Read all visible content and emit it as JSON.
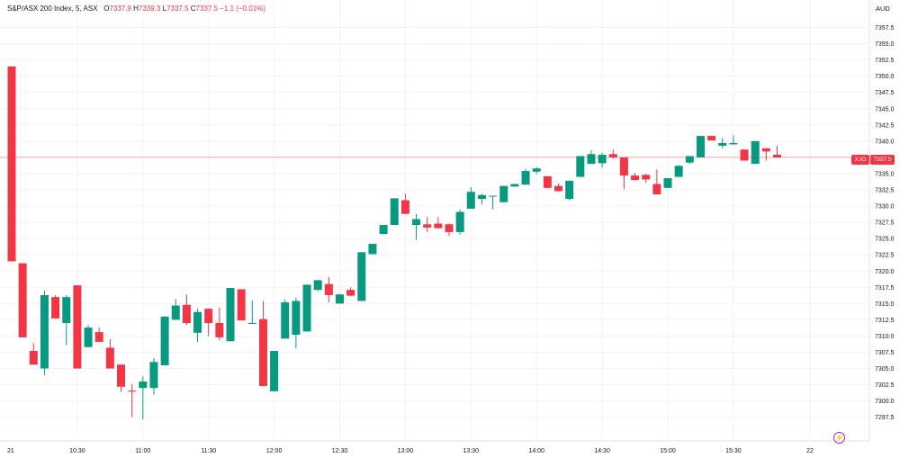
{
  "header": {
    "title": "S&P/ASX 200 Index, 5, ASX",
    "o_label": "O",
    "o_value": "7337.9",
    "h_label": "H",
    "h_value": "7339.3",
    "l_label": "L",
    "l_value": "7337.5",
    "c_label": "C",
    "c_value": "7337.5",
    "change": "−1.1 (−0.01%)"
  },
  "currency": "AUD",
  "ticker_tag": "XJO",
  "last_price_tag": "7337.5",
  "colors": {
    "up": "#089981",
    "down": "#f23645",
    "grid": "#f0f3fa",
    "text": "#131722",
    "event_icon": "#9c27b0"
  },
  "event_icon": "lightning-icon",
  "chart_data": {
    "type": "candlestick",
    "y_ticks": [
      "7357.5",
      "7355.0",
      "7352.5",
      "7350.0",
      "7347.5",
      "7345.0",
      "7342.5",
      "7340.0",
      "7337.5",
      "7335.0",
      "7332.5",
      "7330.0",
      "7327.5",
      "7325.0",
      "7322.5",
      "7320.0",
      "7317.5",
      "7315.0",
      "7312.5",
      "7310.0",
      "7307.5",
      "7305.0",
      "7302.5",
      "7300.0",
      "7297.5"
    ],
    "ylim": [
      7295.5,
      7359.5
    ],
    "x_ticks": [
      {
        "label": "21",
        "time": "10:00"
      },
      {
        "label": "10:30",
        "time": "10:30"
      },
      {
        "label": "11:00",
        "time": "11:00"
      },
      {
        "label": "11:30",
        "time": "11:30"
      },
      {
        "label": "12:00",
        "time": "12:00"
      },
      {
        "label": "12:30",
        "time": "12:30"
      },
      {
        "label": "13:00",
        "time": "13:00"
      },
      {
        "label": "13:30",
        "time": "13:30"
      },
      {
        "label": "14:00",
        "time": "14:00"
      },
      {
        "label": "14:30",
        "time": "14:30"
      },
      {
        "label": "15:00",
        "time": "15:00"
      },
      {
        "label": "15:30",
        "time": "15:30"
      },
      {
        "label": "22",
        "time": "16:05"
      }
    ],
    "last_price": 7337.5,
    "candles": [
      {
        "t": "10:00",
        "o": 7351.5,
        "h": 7351.5,
        "l": 7321.5,
        "c": 7321.5
      },
      {
        "t": "10:05",
        "o": 7321.2,
        "h": 7321.2,
        "l": 7309.8,
        "c": 7309.8
      },
      {
        "t": "10:10",
        "o": 7307.7,
        "h": 7308.9,
        "l": 7305.6,
        "c": 7305.6
      },
      {
        "t": "10:15",
        "o": 7305.0,
        "h": 7317.0,
        "l": 7304.0,
        "c": 7316.3
      },
      {
        "t": "10:20",
        "o": 7316.0,
        "h": 7316.3,
        "l": 7312.7,
        "c": 7312.7
      },
      {
        "t": "10:25",
        "o": 7312.0,
        "h": 7316.3,
        "l": 7308.6,
        "c": 7316.0
      },
      {
        "t": "10:30",
        "o": 7317.8,
        "h": 7317.8,
        "l": 7305.0,
        "c": 7305.0
      },
      {
        "t": "10:35",
        "o": 7308.3,
        "h": 7311.7,
        "l": 7308.3,
        "c": 7311.3
      },
      {
        "t": "10:40",
        "o": 7310.6,
        "h": 7311.3,
        "l": 7309.1,
        "c": 7309.1
      },
      {
        "t": "10:45",
        "o": 7308.2,
        "h": 7309.5,
        "l": 7305.0,
        "c": 7305.0
      },
      {
        "t": "10:50",
        "o": 7305.6,
        "h": 7305.6,
        "l": 7301.4,
        "c": 7302.2
      },
      {
        "t": "10:55",
        "o": 7301.6,
        "h": 7302.6,
        "l": 7297.5,
        "c": 7301.5
      },
      {
        "t": "11:00",
        "o": 7302.0,
        "h": 7303.8,
        "l": 7297.2,
        "c": 7303.0
      },
      {
        "t": "11:05",
        "o": 7302.0,
        "h": 7306.6,
        "l": 7301.0,
        "c": 7306.0
      },
      {
        "t": "11:10",
        "o": 7305.5,
        "h": 7313.0,
        "l": 7305.5,
        "c": 7313.0
      },
      {
        "t": "11:15",
        "o": 7312.5,
        "h": 7315.7,
        "l": 7312.5,
        "c": 7314.7
      },
      {
        "t": "11:20",
        "o": 7314.8,
        "h": 7316.4,
        "l": 7311.7,
        "c": 7312.0
      },
      {
        "t": "11:25",
        "o": 7310.5,
        "h": 7314.2,
        "l": 7309.1,
        "c": 7313.7
      },
      {
        "t": "11:30",
        "o": 7314.2,
        "h": 7314.2,
        "l": 7310.0,
        "c": 7312.0
      },
      {
        "t": "11:35",
        "o": 7312.0,
        "h": 7314.4,
        "l": 7309.3,
        "c": 7309.8
      },
      {
        "t": "11:40",
        "o": 7309.2,
        "h": 7317.4,
        "l": 7309.2,
        "c": 7317.4
      },
      {
        "t": "11:45",
        "o": 7317.2,
        "h": 7317.2,
        "l": 7312.4,
        "c": 7312.4
      },
      {
        "t": "11:50",
        "o": 7312.0,
        "h": 7315.5,
        "l": 7312.0,
        "c": 7312.0
      },
      {
        "t": "11:55",
        "o": 7312.6,
        "h": 7315.4,
        "l": 7302.3,
        "c": 7302.3
      },
      {
        "t": "12:00",
        "o": 7301.5,
        "h": 7307.7,
        "l": 7301.5,
        "c": 7307.7
      },
      {
        "t": "12:05",
        "o": 7309.6,
        "h": 7315.6,
        "l": 7309.6,
        "c": 7315.2
      },
      {
        "t": "12:10",
        "o": 7310.2,
        "h": 7315.9,
        "l": 7308.1,
        "c": 7315.4
      },
      {
        "t": "12:15",
        "o": 7310.7,
        "h": 7317.9,
        "l": 7310.7,
        "c": 7317.9
      },
      {
        "t": "12:20",
        "o": 7317.1,
        "h": 7318.6,
        "l": 7316.9,
        "c": 7318.6
      },
      {
        "t": "12:25",
        "o": 7318.0,
        "h": 7319.1,
        "l": 7315.2,
        "c": 7316.3
      },
      {
        "t": "12:30",
        "o": 7315.0,
        "h": 7316.5,
        "l": 7315.0,
        "c": 7316.4
      },
      {
        "t": "12:35",
        "o": 7317.1,
        "h": 7317.5,
        "l": 7316.2,
        "c": 7316.2
      },
      {
        "t": "12:40",
        "o": 7315.4,
        "h": 7322.9,
        "l": 7315.4,
        "c": 7322.9
      },
      {
        "t": "12:45",
        "o": 7322.6,
        "h": 7324.2,
        "l": 7322.6,
        "c": 7324.2
      },
      {
        "t": "12:50",
        "o": 7325.7,
        "h": 7327.1,
        "l": 7325.7,
        "c": 7327.1
      },
      {
        "t": "12:55",
        "o": 7327.1,
        "h": 7331.2,
        "l": 7327.1,
        "c": 7331.2
      },
      {
        "t": "13:00",
        "o": 7330.9,
        "h": 7331.9,
        "l": 7328.8,
        "c": 7328.8
      },
      {
        "t": "13:05",
        "o": 7327.1,
        "h": 7328.8,
        "l": 7324.8,
        "c": 7328.0
      },
      {
        "t": "13:10",
        "o": 7327.2,
        "h": 7328.3,
        "l": 7326.0,
        "c": 7326.7
      },
      {
        "t": "13:15",
        "o": 7327.3,
        "h": 7328.3,
        "l": 7326.6,
        "c": 7326.6
      },
      {
        "t": "13:20",
        "o": 7327.2,
        "h": 7327.3,
        "l": 7325.4,
        "c": 7326.0
      },
      {
        "t": "13:25",
        "o": 7326.0,
        "h": 7329.5,
        "l": 7325.6,
        "c": 7329.1
      },
      {
        "t": "13:30",
        "o": 7329.6,
        "h": 7332.9,
        "l": 7329.6,
        "c": 7332.2
      },
      {
        "t": "13:35",
        "o": 7331.1,
        "h": 7331.9,
        "l": 7330.3,
        "c": 7331.7
      },
      {
        "t": "13:40",
        "o": 7331.6,
        "h": 7331.6,
        "l": 7329.5,
        "c": 7331.6
      },
      {
        "t": "13:45",
        "o": 7330.6,
        "h": 7333.1,
        "l": 7330.6,
        "c": 7333.1
      },
      {
        "t": "13:50",
        "o": 7333.0,
        "h": 7333.4,
        "l": 7333.0,
        "c": 7333.4
      },
      {
        "t": "13:55",
        "o": 7333.3,
        "h": 7335.7,
        "l": 7333.3,
        "c": 7335.4
      },
      {
        "t": "14:00",
        "o": 7335.3,
        "h": 7336.0,
        "l": 7334.9,
        "c": 7335.8
      },
      {
        "t": "14:05",
        "o": 7334.6,
        "h": 7334.6,
        "l": 7332.8,
        "c": 7332.8
      },
      {
        "t": "14:10",
        "o": 7333.1,
        "h": 7333.5,
        "l": 7332.2,
        "c": 7332.3
      },
      {
        "t": "14:15",
        "o": 7331.1,
        "h": 7333.9,
        "l": 7330.9,
        "c": 7333.9
      },
      {
        "t": "14:20",
        "o": 7334.5,
        "h": 7337.7,
        "l": 7334.5,
        "c": 7337.7
      },
      {
        "t": "14:25",
        "o": 7336.5,
        "h": 7338.6,
        "l": 7336.5,
        "c": 7338.0
      },
      {
        "t": "14:30",
        "o": 7336.6,
        "h": 7338.2,
        "l": 7335.9,
        "c": 7337.9
      },
      {
        "t": "14:35",
        "o": 7338.0,
        "h": 7338.7,
        "l": 7337.3,
        "c": 7337.5
      },
      {
        "t": "14:40",
        "o": 7337.5,
        "h": 7337.5,
        "l": 7332.6,
        "c": 7334.7
      },
      {
        "t": "14:45",
        "o": 7334.7,
        "h": 7335.1,
        "l": 7334.0,
        "c": 7334.0
      },
      {
        "t": "14:50",
        "o": 7334.8,
        "h": 7335.0,
        "l": 7333.6,
        "c": 7334.1
      },
      {
        "t": "14:55",
        "o": 7333.4,
        "h": 7335.6,
        "l": 7332.0,
        "c": 7331.8
      },
      {
        "t": "15:00",
        "o": 7332.8,
        "h": 7334.3,
        "l": 7332.8,
        "c": 7334.3
      },
      {
        "t": "15:05",
        "o": 7334.5,
        "h": 7336.3,
        "l": 7334.5,
        "c": 7336.2
      },
      {
        "t": "15:10",
        "o": 7336.7,
        "h": 7337.7,
        "l": 7336.5,
        "c": 7337.7
      },
      {
        "t": "15:15",
        "o": 7337.5,
        "h": 7340.8,
        "l": 7337.5,
        "c": 7340.8
      },
      {
        "t": "15:20",
        "o": 7340.8,
        "h": 7340.8,
        "l": 7340.1,
        "c": 7340.1
      },
      {
        "t": "15:25",
        "o": 7339.3,
        "h": 7340.5,
        "l": 7338.9,
        "c": 7339.7
      },
      {
        "t": "15:30",
        "o": 7339.5,
        "h": 7340.9,
        "l": 7339.5,
        "c": 7339.7
      },
      {
        "t": "15:35",
        "o": 7338.7,
        "h": 7338.7,
        "l": 7337.0,
        "c": 7337.0
      },
      {
        "t": "15:40",
        "o": 7336.5,
        "h": 7340.0,
        "l": 7336.5,
        "c": 7340.0
      },
      {
        "t": "15:45",
        "o": 7338.9,
        "h": 7338.9,
        "l": 7337.0,
        "c": 7338.4
      },
      {
        "t": "15:50",
        "o": 7337.9,
        "h": 7339.3,
        "l": 7337.5,
        "c": 7337.5
      }
    ]
  }
}
